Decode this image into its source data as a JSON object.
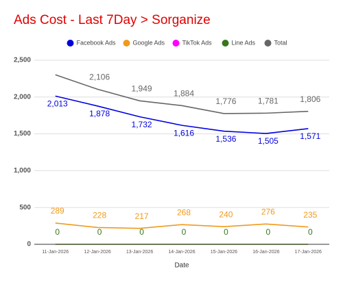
{
  "chart_data": {
    "type": "line",
    "title": "Ads Cost - Last 7Day > Sorganize",
    "x_label": "Date",
    "categories": [
      "11-Jan-2026",
      "12-Jan-2026",
      "13-Jan-2026",
      "14-Jan-2026",
      "15-Jan-2026",
      "16-Jan-2026",
      "17-Jan-2026"
    ],
    "series": [
      {
        "name": "Facebook Ads",
        "color": "#0000e0",
        "values": [
          2013,
          1878,
          1732,
          1616,
          1536,
          1505,
          1571
        ],
        "data_labels": true,
        "value_labels": [
          "2,013",
          "1,878",
          "1,732",
          "1,616",
          "1,536",
          "1,505",
          "1,571"
        ]
      },
      {
        "name": "Google Ads",
        "color": "#f09a1c",
        "values": [
          289,
          228,
          217,
          268,
          240,
          276,
          235
        ],
        "data_labels": true
      },
      {
        "name": "TikTok Ads",
        "color": "#ff00ff",
        "values": [
          0,
          0,
          0,
          0,
          0,
          0,
          0
        ],
        "data_labels": false
      },
      {
        "name": "Line Ads",
        "color": "#38761d",
        "values": [
          0,
          0,
          0,
          0,
          0,
          0,
          0
        ],
        "data_labels": true
      },
      {
        "name": "Total",
        "color": "#666666",
        "values": [
          2302,
          2106,
          1949,
          1884,
          1776,
          1781,
          1806
        ],
        "data_labels": true,
        "value_labels": [
          null,
          "2,106",
          "1,949",
          "1,884",
          "1,776",
          "1,781",
          "1,806"
        ]
      }
    ],
    "ylim": [
      0,
      2500
    ],
    "yticks": [
      0,
      500,
      {
        "value": 1000,
        "label": "1,000"
      },
      {
        "value": 1500,
        "label": "1,500"
      },
      {
        "value": 2000,
        "label": "2,000"
      },
      {
        "value": 2500,
        "label": "2,500"
      }
    ],
    "grid": true,
    "legend": "top"
  }
}
